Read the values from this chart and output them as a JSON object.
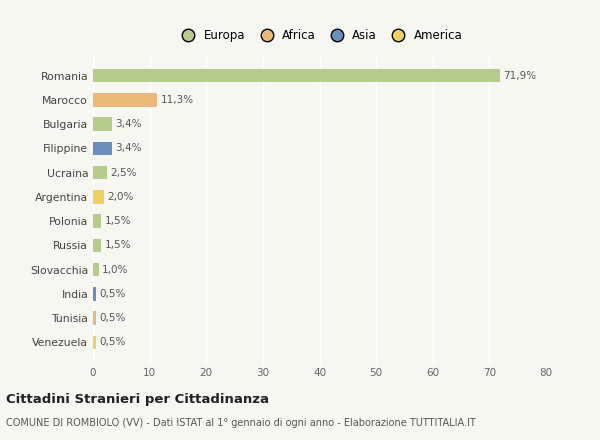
{
  "categories": [
    "Romania",
    "Marocco",
    "Bulgaria",
    "Filippine",
    "Ucraina",
    "Argentina",
    "Polonia",
    "Russia",
    "Slovacchia",
    "India",
    "Tunisia",
    "Venezuela"
  ],
  "values": [
    71.9,
    11.3,
    3.4,
    3.4,
    2.5,
    2.0,
    1.5,
    1.5,
    1.0,
    0.5,
    0.5,
    0.5
  ],
  "labels": [
    "71,9%",
    "11,3%",
    "3,4%",
    "3,4%",
    "2,5%",
    "2,0%",
    "1,5%",
    "1,5%",
    "1,0%",
    "0,5%",
    "0,5%",
    "0,5%"
  ],
  "colors": [
    "#b5cc8e",
    "#e9b97a",
    "#b5cc8e",
    "#6a8fbf",
    "#b5cc8e",
    "#f0d060",
    "#b5cc8e",
    "#b5cc8e",
    "#b5cc8e",
    "#6a8fbf",
    "#e9b97a",
    "#f0d060"
  ],
  "legend": [
    {
      "label": "Europa",
      "color": "#b5cc8e"
    },
    {
      "label": "Africa",
      "color": "#e9b97a"
    },
    {
      "label": "Asia",
      "color": "#6a8fbf"
    },
    {
      "label": "America",
      "color": "#f0d060"
    }
  ],
  "xlim": [
    0,
    80
  ],
  "xticks": [
    0,
    10,
    20,
    30,
    40,
    50,
    60,
    70,
    80
  ],
  "title": "Cittadini Stranieri per Cittadinanza",
  "subtitle": "COMUNE DI ROMBIOLO (VV) - Dati ISTAT al 1° gennaio di ogni anno - Elaborazione TUTTITALIA.IT",
  "background_color": "#f7f7f2",
  "grid_color": "#ffffff",
  "bar_height": 0.55
}
